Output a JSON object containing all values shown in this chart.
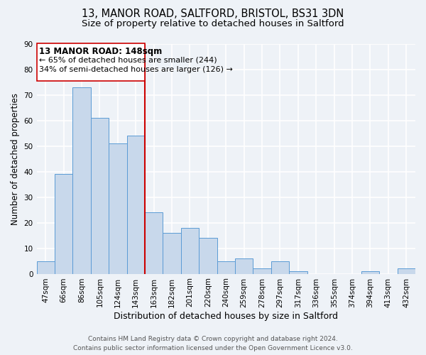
{
  "title": "13, MANOR ROAD, SALTFORD, BRISTOL, BS31 3DN",
  "subtitle": "Size of property relative to detached houses in Saltford",
  "xlabel": "Distribution of detached houses by size in Saltford",
  "ylabel": "Number of detached properties",
  "bar_labels": [
    "47sqm",
    "66sqm",
    "86sqm",
    "105sqm",
    "124sqm",
    "143sqm",
    "163sqm",
    "182sqm",
    "201sqm",
    "220sqm",
    "240sqm",
    "259sqm",
    "278sqm",
    "297sqm",
    "317sqm",
    "336sqm",
    "355sqm",
    "374sqm",
    "394sqm",
    "413sqm",
    "432sqm"
  ],
  "bar_values": [
    5,
    39,
    73,
    61,
    51,
    54,
    24,
    16,
    18,
    14,
    5,
    6,
    2,
    5,
    1,
    0,
    0,
    0,
    1,
    0,
    2
  ],
  "bar_color": "#c8d8eb",
  "bar_edge_color": "#5b9bd5",
  "vline_x": 5.5,
  "vline_color": "#cc0000",
  "ylim": [
    0,
    90
  ],
  "yticks": [
    0,
    10,
    20,
    30,
    40,
    50,
    60,
    70,
    80,
    90
  ],
  "ann_line1": "13 MANOR ROAD: 148sqm",
  "ann_line2": "← 65% of detached houses are smaller (244)",
  "ann_line3": "34% of semi-detached houses are larger (126) →",
  "footer_line1": "Contains HM Land Registry data © Crown copyright and database right 2024.",
  "footer_line2": "Contains public sector information licensed under the Open Government Licence v3.0.",
  "background_color": "#eef2f7",
  "grid_color": "#ffffff",
  "title_fontsize": 10.5,
  "subtitle_fontsize": 9.5,
  "ylabel_fontsize": 8.5,
  "xlabel_fontsize": 9,
  "tick_fontsize": 7.5,
  "ann_fontsize": 8.5,
  "footer_fontsize": 6.5
}
